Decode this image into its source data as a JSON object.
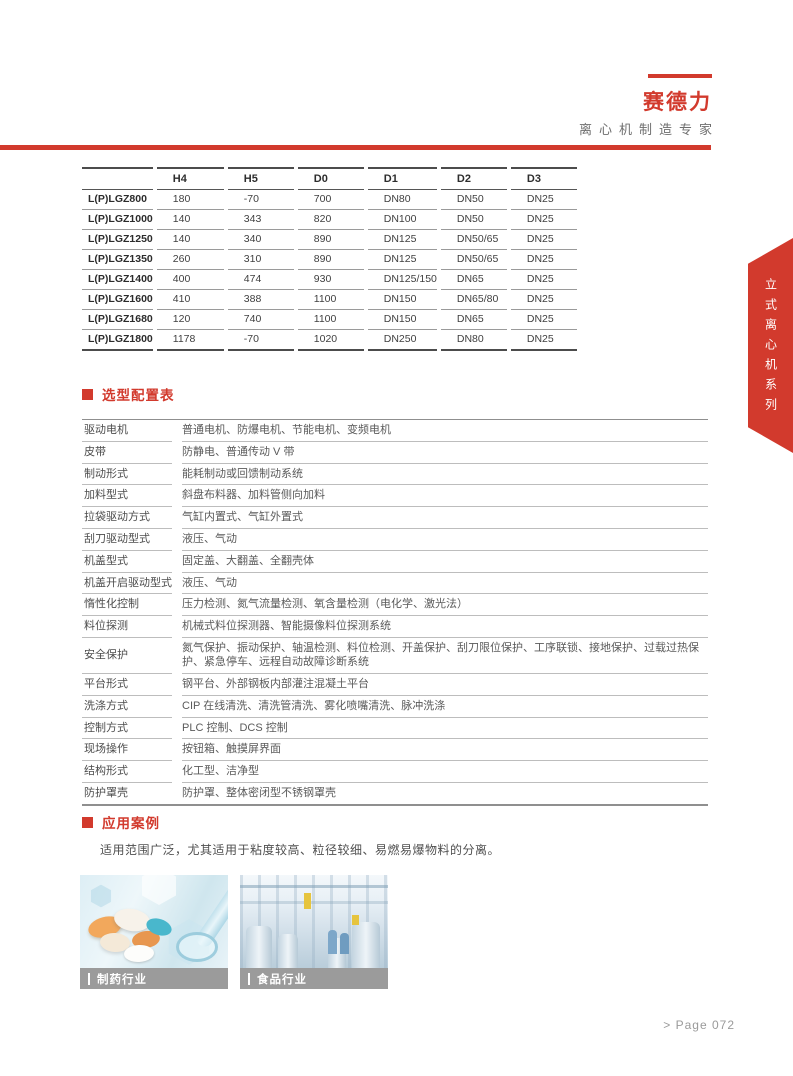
{
  "theme": {
    "accent_color": "#d23a2d",
    "caption_bar_color": "#9b9b9b"
  },
  "header": {
    "brand": "赛德力",
    "tagline": "离心机制造专家"
  },
  "side_tab": {
    "label": "立式离心机系列"
  },
  "spec_table": {
    "columns": [
      "",
      "H4",
      "H5",
      "D0",
      "D1",
      "D2",
      "D3"
    ],
    "rows": [
      {
        "model": "L(P)LGZ800",
        "values": [
          "180",
          "-70",
          "700",
          "DN80",
          "DN50",
          "DN25"
        ]
      },
      {
        "model": "L(P)LGZ1000",
        "values": [
          "140",
          "343",
          "820",
          "DN100",
          "DN50",
          "DN25"
        ]
      },
      {
        "model": "L(P)LGZ1250",
        "values": [
          "140",
          "340",
          "890",
          "DN125",
          "DN50/65",
          "DN25"
        ]
      },
      {
        "model": "L(P)LGZ1350",
        "values": [
          "260",
          "310",
          "890",
          "DN125",
          "DN50/65",
          "DN25"
        ]
      },
      {
        "model": "L(P)LGZ1400",
        "values": [
          "400",
          "474",
          "930",
          "DN125/150",
          "DN65",
          "DN25"
        ]
      },
      {
        "model": "L(P)LGZ1600",
        "values": [
          "410",
          "388",
          "1100",
          "DN150",
          "DN65/80",
          "DN25"
        ]
      },
      {
        "model": "L(P)LGZ1680",
        "values": [
          "120",
          "740",
          "1100",
          "DN150",
          "DN65",
          "DN25"
        ]
      },
      {
        "model": "L(P)LGZ1800",
        "values": [
          "1178",
          "-70",
          "1020",
          "DN250",
          "DN80",
          "DN25"
        ]
      }
    ]
  },
  "config_section": {
    "title": "选型配置表",
    "rows": [
      {
        "label": "驱动电机",
        "value": "普通电机、防爆电机、节能电机、变频电机"
      },
      {
        "label": "皮带",
        "value": "防静电、普通传动 V 带"
      },
      {
        "label": "制动形式",
        "value": "能耗制动或回馈制动系统"
      },
      {
        "label": "加料型式",
        "value": "斜盘布料器、加料管侧向加料"
      },
      {
        "label": "拉袋驱动方式",
        "value": "气缸内置式、气缸外置式"
      },
      {
        "label": "刮刀驱动型式",
        "value": "液压、气动"
      },
      {
        "label": "机盖型式",
        "value": "固定盖、大翻盖、全翻壳体"
      },
      {
        "label": "机盖开启驱动型式",
        "value": "液压、气动"
      },
      {
        "label": "惰性化控制",
        "value": "压力检测、氮气流量检测、氧含量检测（电化学、激光法）"
      },
      {
        "label": "料位探测",
        "value": "机械式料位探测器、智能摄像料位探测系统"
      },
      {
        "label": "安全保护",
        "value": "氮气保护、振动保护、轴温检测、料位检测、开盖保护、刮刀限位保护、工序联锁、接地保护、过载过热保护、紧急停车、远程自动故障诊断系统"
      },
      {
        "label": "平台形式",
        "value": "钢平台、外部钢板内部灌注混凝土平台"
      },
      {
        "label": "洗涤方式",
        "value": "CIP 在线清洗、清洗管清洗、雾化喷嘴清洗、脉冲洗涤"
      },
      {
        "label": "控制方式",
        "value": "PLC 控制、DCS 控制"
      },
      {
        "label": "现场操作",
        "value": "按钮箱、触摸屏界面"
      },
      {
        "label": "结构形式",
        "value": "化工型、洁净型"
      },
      {
        "label": "防护罩壳",
        "value": "防护罩、整体密闭型不锈钢罩壳"
      }
    ]
  },
  "application_section": {
    "title": "应用案例",
    "description": "适用范围广泛，尤其适用于粘度较高、粒径较细、易燃易爆物料的分离。",
    "cases": [
      {
        "caption": "制药行业"
      },
      {
        "caption": "食品行业"
      }
    ]
  },
  "footer": {
    "page_label": "> Page 072"
  }
}
